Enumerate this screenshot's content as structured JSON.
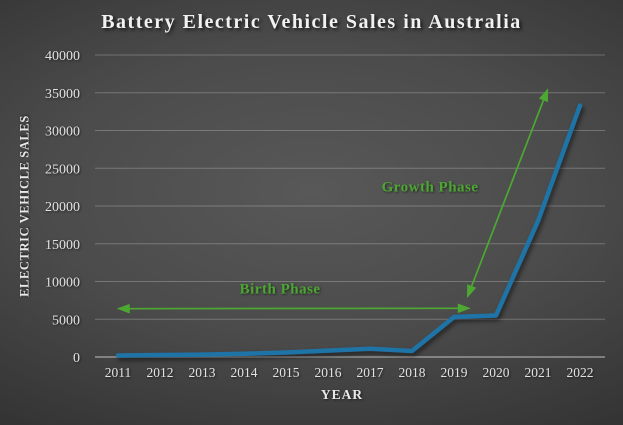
{
  "chart_data": {
    "type": "line",
    "title": "Battery Electric Vehicle Sales in Australia",
    "xlabel": "YEAR",
    "ylabel": "ELECTRIC VEHICLE SALES",
    "x": [
      2011,
      2012,
      2013,
      2014,
      2015,
      2016,
      2017,
      2018,
      2019,
      2020,
      2021,
      2022
    ],
    "values": [
      200,
      270,
      320,
      420,
      600,
      850,
      1100,
      800,
      5300,
      5500,
      18000,
      33300
    ],
    "ylim": [
      0,
      40000
    ],
    "yticks": [
      0,
      5000,
      10000,
      15000,
      20000,
      25000,
      30000,
      35000,
      40000
    ],
    "grid": true,
    "legend_position": "none",
    "line_color": "#1e74a6",
    "annotation_color": "#4ca832",
    "annotations": [
      {
        "type": "double-arrow",
        "label": "Birth Phase",
        "x1": 2010.97,
        "y1": 6400,
        "x2": 2019.4,
        "y2": 6450,
        "label_x": 2014.86,
        "label_y": 9100
      },
      {
        "type": "double-arrow",
        "label": "Growth Phase",
        "x1": 2019.31,
        "y1": 7800,
        "x2": 2021.24,
        "y2": 35600,
        "label_x": 2018.43,
        "label_y": 22600
      }
    ]
  }
}
